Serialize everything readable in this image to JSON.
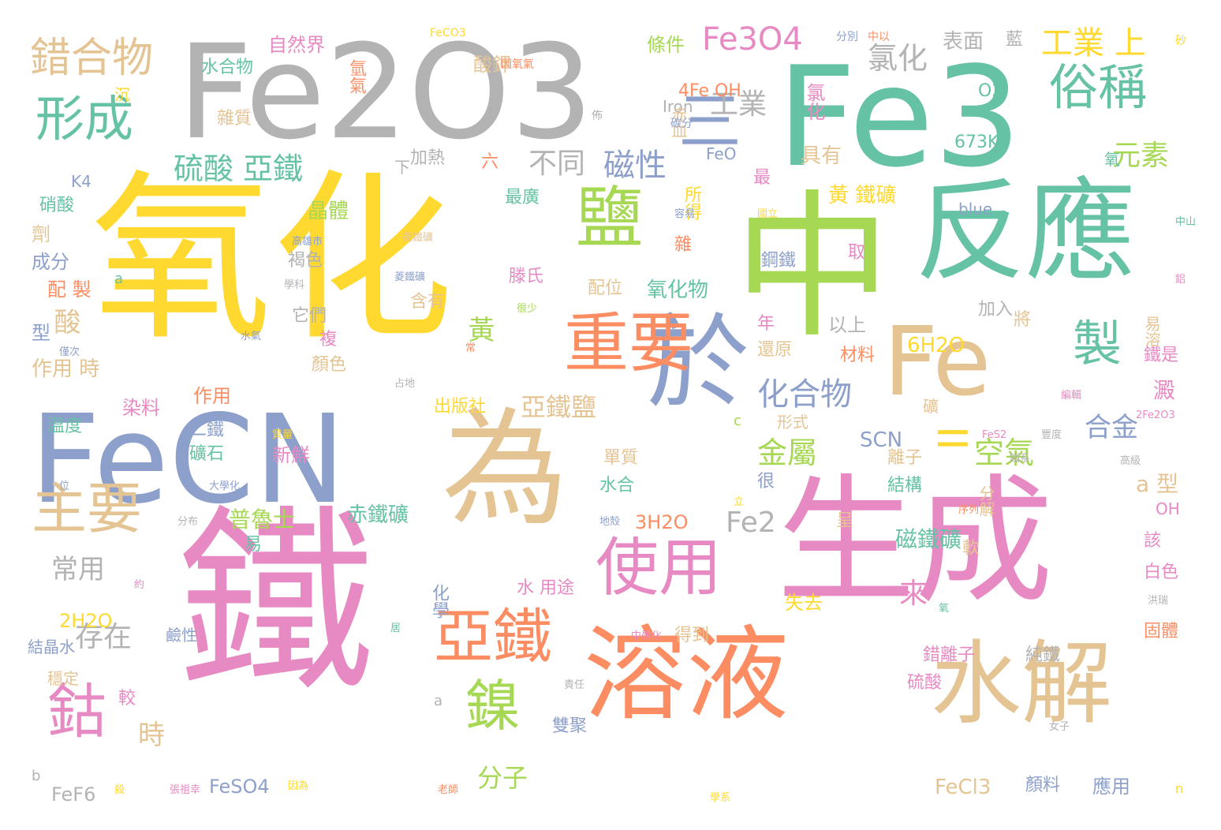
{
  "word_cloud": {
    "palette": {
      "yellow": "#ffd92f",
      "pink": "#e78ac3",
      "green": "#66c2a5",
      "orange": "#fc8d62",
      "blue": "#8da0cb",
      "lime": "#a6d854",
      "tan": "#e5c494",
      "gray": "#b3b3b3"
    },
    "words": [
      {
        "text": "氧化",
        "color": "yellow"
      },
      {
        "text": "鐵",
        "color": "pink"
      },
      {
        "text": "中",
        "color": "lime"
      },
      {
        "text": "Fe2O3",
        "color": "gray"
      },
      {
        "text": "Fe3",
        "color": "green"
      },
      {
        "text": "生成",
        "color": "pink"
      },
      {
        "text": "FeCN",
        "color": "blue"
      },
      {
        "text": "為",
        "color": "tan"
      },
      {
        "text": "反應",
        "color": "green"
      },
      {
        "text": "溶液",
        "color": "orange"
      },
      {
        "text": "Fe",
        "color": "tan"
      },
      {
        "text": "於",
        "color": "blue"
      },
      {
        "text": "水解",
        "color": "tan"
      },
      {
        "text": "重要",
        "color": "orange"
      },
      {
        "text": "使用",
        "color": "pink"
      },
      {
        "text": "鹽",
        "color": "lime"
      },
      {
        "text": "亞鐵",
        "color": "orange"
      },
      {
        "text": "鎳",
        "color": "lime"
      },
      {
        "text": "鈷",
        "color": "pink"
      },
      {
        "text": "主要",
        "color": "tan"
      },
      {
        "text": "形成",
        "color": "green"
      },
      {
        "text": "俗稱",
        "color": "green"
      },
      {
        "text": "製",
        "color": "green"
      },
      {
        "text": "錯合物",
        "color": "tan"
      },
      {
        "text": "三",
        "color": "blue"
      },
      {
        "text": "Fe3O4",
        "color": "pink"
      },
      {
        "text": "工業 上",
        "color": "yellow"
      },
      {
        "text": "硫酸 亞鐵",
        "color": "green"
      },
      {
        "text": "磁性",
        "color": "blue"
      },
      {
        "text": "不同",
        "color": "gray"
      },
      {
        "text": "化合物",
        "color": "blue"
      },
      {
        "text": "亞鐵鹽",
        "color": "tan"
      },
      {
        "text": "氯化",
        "color": "gray"
      },
      {
        "text": "工業",
        "color": "gray"
      },
      {
        "text": "元素",
        "color": "lime"
      },
      {
        "text": "Fe2",
        "color": "gray"
      },
      {
        "text": "空氣",
        "color": "lime"
      },
      {
        "text": "合金",
        "color": "blue"
      },
      {
        "text": "金屬",
        "color": "lime"
      },
      {
        "text": "II",
        "color": "yellow"
      },
      {
        "text": "黃",
        "color": "lime"
      },
      {
        "text": "酸",
        "color": "tan"
      },
      {
        "text": "存在",
        "color": "gray"
      },
      {
        "text": "常用",
        "color": "gray"
      },
      {
        "text": "時",
        "color": "tan"
      },
      {
        "text": "來",
        "color": "pink"
      },
      {
        "text": "分子",
        "color": "lime"
      },
      {
        "text": "普魯士",
        "color": "lime"
      },
      {
        "text": "赤鐵礦",
        "color": "green"
      },
      {
        "text": "磁鐵礦",
        "color": "green"
      },
      {
        "text": "黃 鐵礦",
        "color": "yellow"
      },
      {
        "text": "晶體",
        "color": "lime"
      },
      {
        "text": "氧化物",
        "color": "green"
      },
      {
        "text": "a 型",
        "color": "tan"
      },
      {
        "text": "澱",
        "color": "pink"
      },
      {
        "text": "FeCl3",
        "color": "tan"
      },
      {
        "text": "FeSO4",
        "color": "blue"
      },
      {
        "text": "FeF6",
        "color": "gray"
      },
      {
        "text": "4Fe OH",
        "color": "orange"
      },
      {
        "text": "6H2O",
        "color": "yellow"
      },
      {
        "text": "3H2O",
        "color": "orange"
      },
      {
        "text": "2H2O",
        "color": "yellow"
      },
      {
        "text": "SCN",
        "color": "blue"
      },
      {
        "text": "673K",
        "color": "green"
      },
      {
        "text": "O2",
        "color": "green"
      },
      {
        "text": "blue",
        "color": "blue"
      },
      {
        "text": "Iron",
        "color": "gray"
      },
      {
        "text": "FeO",
        "color": "blue"
      },
      {
        "text": "K4",
        "color": "blue"
      },
      {
        "text": "OH",
        "color": "pink"
      },
      {
        "text": "自然界",
        "color": "pink"
      },
      {
        "text": "水合物",
        "color": "green"
      },
      {
        "text": "條件",
        "color": "lime"
      },
      {
        "text": "表面",
        "color": "gray"
      },
      {
        "text": "藍",
        "color": "gray"
      },
      {
        "text": "氫氣",
        "color": "orange"
      },
      {
        "text": "酸鉀",
        "color": "tan"
      },
      {
        "text": "雜質",
        "color": "tan"
      },
      {
        "text": "加熱",
        "color": "gray"
      },
      {
        "text": "氯化",
        "color": "pink"
      },
      {
        "text": "具有",
        "color": "tan"
      },
      {
        "text": "所得",
        "color": "yellow"
      },
      {
        "text": "最廣",
        "color": "green"
      },
      {
        "text": "硝酸",
        "color": "green"
      },
      {
        "text": "劑",
        "color": "tan"
      },
      {
        "text": "成分",
        "color": "blue"
      },
      {
        "text": "配 製",
        "color": "orange"
      },
      {
        "text": "型",
        "color": "blue"
      },
      {
        "text": "作用 時",
        "color": "tan"
      },
      {
        "text": "作用",
        "color": "orange"
      },
      {
        "text": "染料",
        "color": "pink"
      },
      {
        "text": "溫度",
        "color": "green"
      },
      {
        "text": "二鐵",
        "color": "blue"
      },
      {
        "text": "礦石",
        "color": "green"
      },
      {
        "text": "新鮮",
        "color": "pink"
      },
      {
        "text": "褐色",
        "color": "gray"
      },
      {
        "text": "它們",
        "color": "gray"
      },
      {
        "text": "複",
        "color": "pink"
      },
      {
        "text": "顏色",
        "color": "tan"
      },
      {
        "text": "滕氏",
        "color": "pink"
      },
      {
        "text": "配位",
        "color": "tan"
      },
      {
        "text": "含有",
        "color": "tan"
      },
      {
        "text": "年",
        "color": "pink"
      },
      {
        "text": "還原",
        "color": "tan"
      },
      {
        "text": "以上",
        "color": "gray"
      },
      {
        "text": "材料",
        "color": "orange"
      },
      {
        "text": "加入",
        "color": "gray"
      },
      {
        "text": "將",
        "color": "tan"
      },
      {
        "text": "鋼鐵",
        "color": "blue"
      },
      {
        "text": "取",
        "color": "pink"
      },
      {
        "text": "雜",
        "color": "orange"
      },
      {
        "text": "最",
        "color": "pink"
      },
      {
        "text": "六",
        "color": "orange"
      },
      {
        "text": "氧",
        "color": "green"
      },
      {
        "text": "鐵是",
        "color": "pink"
      },
      {
        "text": "易溶",
        "color": "tan"
      },
      {
        "text": "礦",
        "color": "tan"
      },
      {
        "text": "形式",
        "color": "tan"
      },
      {
        "text": "出版社",
        "color": "yellow"
      },
      {
        "text": "單質",
        "color": "tan"
      },
      {
        "text": "很",
        "color": "blue"
      },
      {
        "text": "水合",
        "color": "green"
      },
      {
        "text": "離子",
        "color": "tan"
      },
      {
        "text": "結構",
        "color": "green"
      },
      {
        "text": "分解",
        "color": "tan"
      },
      {
        "text": "呈",
        "color": "tan"
      },
      {
        "text": "軟",
        "color": "tan"
      },
      {
        "text": "該",
        "color": "pink"
      },
      {
        "text": "白色",
        "color": "pink"
      },
      {
        "text": "化學",
        "color": "blue"
      },
      {
        "text": "水 用途",
        "color": "pink"
      },
      {
        "text": "失去",
        "color": "yellow"
      },
      {
        "text": "得到",
        "color": "tan"
      },
      {
        "text": "錯離子",
        "color": "pink"
      },
      {
        "text": "純鐵",
        "color": "gray"
      },
      {
        "text": "固體",
        "color": "orange"
      },
      {
        "text": "硫酸",
        "color": "pink"
      },
      {
        "text": "雙聚",
        "color": "blue"
      },
      {
        "text": "顏料",
        "color": "blue"
      },
      {
        "text": "應用",
        "color": "blue"
      },
      {
        "text": "結晶水",
        "color": "blue"
      },
      {
        "text": "穩定",
        "color": "tan"
      },
      {
        "text": "較",
        "color": "pink"
      },
      {
        "text": "鹼性",
        "color": "blue"
      },
      {
        "text": "易",
        "color": "green"
      },
      {
        "text": "赤血",
        "color": "tan"
      },
      {
        "text": "沉",
        "color": "yellow"
      },
      {
        "text": "下",
        "color": "gray"
      },
      {
        "text": "a",
        "color": "green"
      },
      {
        "text": "a",
        "color": "gray"
      },
      {
        "text": "b",
        "color": "gray"
      },
      {
        "text": "c",
        "color": "lime"
      },
      {
        "text": "n",
        "color": "yellow"
      },
      {
        "text": "分別",
        "color": "blue"
      },
      {
        "text": "中以",
        "color": "orange"
      },
      {
        "text": "FeCO3",
        "color": "yellow"
      },
      {
        "text": "因氧氣",
        "color": "orange"
      },
      {
        "text": "砂",
        "color": "yellow"
      },
      {
        "text": "佈",
        "color": "gray"
      },
      {
        "text": "碳分",
        "color": "blue"
      },
      {
        "text": "國立",
        "color": "yellow"
      },
      {
        "text": "容易",
        "color": "blue"
      },
      {
        "text": "高雄市",
        "color": "blue"
      },
      {
        "text": "褐鐵礦",
        "color": "tan"
      },
      {
        "text": "學科",
        "color": "gray"
      },
      {
        "text": "菱鐵礦",
        "color": "blue"
      },
      {
        "text": "很少",
        "color": "lime"
      },
      {
        "text": "僅次",
        "color": "blue"
      },
      {
        "text": "水氣",
        "color": "blue"
      },
      {
        "text": "常",
        "color": "orange"
      },
      {
        "text": "占地",
        "color": "gray"
      },
      {
        "text": "質量",
        "color": "yellow"
      },
      {
        "text": "大學化",
        "color": "blue"
      },
      {
        "text": "立",
        "color": "yellow"
      },
      {
        "text": "位",
        "color": "blue"
      },
      {
        "text": "分布",
        "color": "gray"
      },
      {
        "text": "地殼",
        "color": "blue"
      },
      {
        "text": "序列",
        "color": "orange"
      },
      {
        "text": "約",
        "color": "pink"
      },
      {
        "text": "居",
        "color": "green"
      },
      {
        "text": "中學化",
        "color": "pink"
      },
      {
        "text": "責任",
        "color": "gray"
      },
      {
        "text": "氧",
        "color": "green"
      },
      {
        "text": "洪瑞",
        "color": "gray"
      },
      {
        "text": "女子",
        "color": "gray"
      },
      {
        "text": "殺",
        "color": "yellow"
      },
      {
        "text": "張祖幸",
        "color": "pink"
      },
      {
        "text": "因為",
        "color": "yellow"
      },
      {
        "text": "老師",
        "color": "orange"
      },
      {
        "text": "學系",
        "color": "yellow"
      },
      {
        "text": "2Fe2O3",
        "color": "pink"
      },
      {
        "text": "FeS2",
        "color": "pink"
      },
      {
        "text": "鐵系",
        "color": "gray"
      },
      {
        "text": "豐度",
        "color": "gray"
      },
      {
        "text": "高級",
        "color": "gray"
      },
      {
        "text": "中山",
        "color": "green"
      },
      {
        "text": "鋁",
        "color": "pink"
      },
      {
        "text": "編輯",
        "color": "pink"
      },
      {
        "text": "副教授",
        "color": "gray"
      }
    ]
  }
}
